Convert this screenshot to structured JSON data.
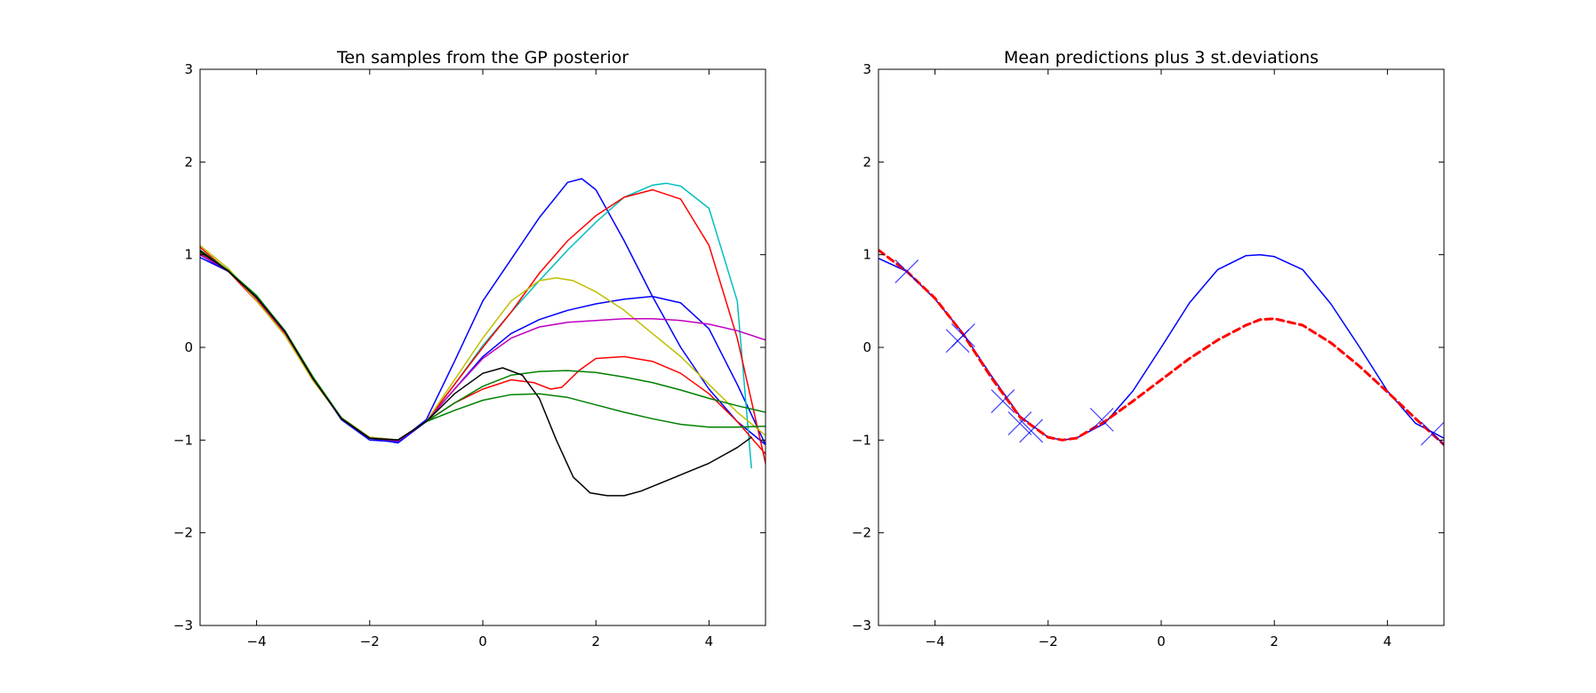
{
  "figure": {
    "background": "#ffffff"
  },
  "chart_data": [
    {
      "type": "line",
      "title": "Ten samples from the GP posterior",
      "xlabel": "",
      "ylabel": "",
      "xlim": [
        -5,
        5
      ],
      "ylim": [
        -3,
        3
      ],
      "xticks": [
        -4,
        -2,
        0,
        2,
        4
      ],
      "yticks": [
        -3,
        -2,
        -1,
        0,
        1,
        2,
        3
      ],
      "grid": false,
      "series": [
        {
          "color": "#0000ff",
          "x": [
            -5,
            -4.5,
            -4,
            -3.5,
            -3,
            -2.5,
            -2,
            -1.5,
            -1,
            -0.5,
            0,
            0.5,
            1,
            1.5,
            1.75,
            2,
            2.5,
            3,
            3.5,
            4,
            4.5,
            5
          ],
          "y": [
            0.97,
            0.82,
            0.55,
            0.18,
            -0.33,
            -0.78,
            -1.0,
            -1.02,
            -0.78,
            -0.15,
            0.5,
            0.95,
            1.4,
            1.78,
            1.82,
            1.7,
            1.15,
            0.55,
            0.0,
            -0.45,
            -0.8,
            -1.05
          ]
        },
        {
          "color": "#0000ff",
          "x": [
            -5,
            -4.5,
            -4,
            -3.5,
            -3,
            -2.5,
            -2,
            -1.5,
            -1,
            -0.5,
            0,
            0.5,
            1,
            1.5,
            2,
            2.5,
            3,
            3.5,
            4,
            4.5,
            5
          ],
          "y": [
            1.0,
            0.82,
            0.53,
            0.17,
            -0.34,
            -0.77,
            -0.98,
            -1.03,
            -0.8,
            -0.45,
            -0.1,
            0.15,
            0.3,
            0.4,
            0.47,
            0.52,
            0.55,
            0.48,
            0.2,
            -0.4,
            -1.05
          ]
        },
        {
          "color": "#00bfbf",
          "x": [
            -5,
            -4.5,
            -4,
            -3.5,
            -3,
            -2.5,
            -2,
            -1.5,
            -1,
            -0.5,
            0,
            0.5,
            1,
            1.5,
            2,
            2.5,
            3,
            3.25,
            3.5,
            4,
            4.5,
            4.75
          ],
          "y": [
            1.05,
            0.83,
            0.52,
            0.15,
            -0.35,
            -0.76,
            -0.97,
            -1.0,
            -0.8,
            -0.4,
            0.02,
            0.38,
            0.72,
            1.05,
            1.35,
            1.62,
            1.75,
            1.77,
            1.74,
            1.5,
            0.5,
            -1.3
          ]
        },
        {
          "color": "#ff0000",
          "x": [
            -5,
            -4.5,
            -4,
            -3.5,
            -3,
            -2.5,
            -2,
            -1.5,
            -1,
            -0.5,
            0,
            0.5,
            1,
            1.5,
            2,
            2.5,
            3,
            3.5,
            4,
            4.5,
            5
          ],
          "y": [
            1.08,
            0.82,
            0.5,
            0.14,
            -0.36,
            -0.76,
            -0.97,
            -1.0,
            -0.8,
            -0.4,
            0.0,
            0.38,
            0.8,
            1.15,
            1.42,
            1.62,
            1.7,
            1.6,
            1.1,
            0.1,
            -1.25
          ]
        },
        {
          "color": "#ff0000",
          "x": [
            -5,
            -4.5,
            -4,
            -3.5,
            -3,
            -2.5,
            -2,
            -1.5,
            -1,
            -0.5,
            0,
            0.5,
            0.9,
            1.2,
            1.4,
            1.7,
            2,
            2.5,
            3,
            3.5,
            4,
            4.5,
            5
          ],
          "y": [
            1.02,
            0.82,
            0.52,
            0.16,
            -0.33,
            -0.77,
            -0.98,
            -1.0,
            -0.8,
            -0.6,
            -0.45,
            -0.35,
            -0.38,
            -0.45,
            -0.43,
            -0.25,
            -0.12,
            -0.1,
            -0.15,
            -0.28,
            -0.5,
            -0.8,
            -1.15
          ]
        },
        {
          "color": "#bfbf00",
          "x": [
            -5,
            -4.5,
            -4,
            -3.5,
            -3,
            -2.5,
            -2,
            -1.5,
            -1,
            -0.5,
            0,
            0.5,
            1,
            1.3,
            1.6,
            2,
            2.5,
            3,
            3.5,
            4,
            4.5,
            5
          ],
          "y": [
            1.1,
            0.85,
            0.5,
            0.13,
            -0.36,
            -0.76,
            -0.97,
            -1.0,
            -0.8,
            -0.35,
            0.1,
            0.5,
            0.72,
            0.75,
            0.72,
            0.6,
            0.4,
            0.15,
            -0.1,
            -0.4,
            -0.7,
            -0.95
          ]
        },
        {
          "color": "#bf00bf",
          "x": [
            -5,
            -4.5,
            -4,
            -3.5,
            -3,
            -2.5,
            -2,
            -1.5,
            -1,
            -0.5,
            0,
            0.5,
            1,
            1.5,
            2,
            2.5,
            3,
            3.5,
            4,
            4.5,
            5
          ],
          "y": [
            1.0,
            0.83,
            0.53,
            0.16,
            -0.34,
            -0.77,
            -0.98,
            -1.01,
            -0.8,
            -0.45,
            -0.12,
            0.1,
            0.22,
            0.27,
            0.29,
            0.31,
            0.31,
            0.29,
            0.25,
            0.18,
            0.08
          ]
        },
        {
          "color": "#008000",
          "x": [
            -5,
            -4.5,
            -4,
            -3.5,
            -3,
            -2.5,
            -2,
            -1.5,
            -1,
            -0.5,
            0,
            0.5,
            1,
            1.5,
            2,
            2.5,
            3,
            3.5,
            4,
            4.5,
            5
          ],
          "y": [
            1.03,
            0.83,
            0.55,
            0.18,
            -0.33,
            -0.77,
            -0.98,
            -1.0,
            -0.8,
            -0.6,
            -0.42,
            -0.3,
            -0.26,
            -0.25,
            -0.27,
            -0.32,
            -0.38,
            -0.46,
            -0.55,
            -0.63,
            -0.7
          ]
        },
        {
          "color": "#008000",
          "x": [
            -5,
            -4.5,
            -4,
            -3.5,
            -3,
            -2.5,
            -2,
            -1.5,
            -1,
            -0.5,
            0,
            0.5,
            1,
            1.5,
            2,
            2.5,
            3,
            3.5,
            4,
            4.5,
            5
          ],
          "y": [
            1.05,
            0.83,
            0.56,
            0.18,
            -0.32,
            -0.76,
            -0.98,
            -1.0,
            -0.8,
            -0.68,
            -0.57,
            -0.51,
            -0.5,
            -0.54,
            -0.62,
            -0.7,
            -0.77,
            -0.83,
            -0.86,
            -0.86,
            -0.85
          ]
        },
        {
          "color": "#000000",
          "x": [
            -5,
            -4.5,
            -4,
            -3.5,
            -3,
            -2.5,
            -2,
            -1.5,
            -1,
            -0.5,
            0,
            0.35,
            0.7,
            1.0,
            1.3,
            1.6,
            1.9,
            2.2,
            2.5,
            2.8,
            3.2,
            3.6,
            4,
            4.5,
            4.75
          ],
          "y": [
            1.04,
            0.82,
            0.54,
            0.17,
            -0.34,
            -0.77,
            -0.98,
            -1.0,
            -0.8,
            -0.5,
            -0.28,
            -0.22,
            -0.3,
            -0.55,
            -1.0,
            -1.4,
            -1.57,
            -1.6,
            -1.6,
            -1.55,
            -1.45,
            -1.35,
            -1.25,
            -1.08,
            -0.97
          ]
        }
      ]
    },
    {
      "type": "line",
      "title": "Mean predictions plus 3 st.deviations",
      "xlabel": "",
      "ylabel": "",
      "xlim": [
        -5,
        5
      ],
      "ylim": [
        -3,
        3
      ],
      "xticks": [
        -4,
        -2,
        0,
        2,
        4
      ],
      "yticks": [
        -3,
        -2,
        -1,
        0,
        1,
        2,
        3
      ],
      "grid": false,
      "true_function": {
        "color": "#0000ff",
        "style": "solid",
        "x": [
          -5,
          -4.5,
          -4,
          -3.5,
          -3,
          -2.5,
          -2,
          -1.75,
          -1.5,
          -1,
          -0.5,
          0,
          0.5,
          1,
          1.5,
          1.75,
          2,
          2.5,
          3,
          3.5,
          4,
          4.5,
          5
        ],
        "y": [
          0.96,
          0.82,
          0.52,
          0.15,
          -0.31,
          -0.74,
          -0.97,
          -1.0,
          -0.98,
          -0.82,
          -0.47,
          0.0,
          0.48,
          0.84,
          0.99,
          1.0,
          0.98,
          0.84,
          0.47,
          0.01,
          -0.47,
          -0.82,
          -0.98
        ]
      },
      "mean_prediction": {
        "color": "#ff0000",
        "style": "dashed",
        "x": [
          -5,
          -4.5,
          -4,
          -3.5,
          -3,
          -2.5,
          -2,
          -1.75,
          -1.5,
          -1,
          -0.5,
          0,
          0.5,
          1,
          1.5,
          1.75,
          2,
          2.5,
          3,
          3.5,
          4,
          4.5,
          5
        ],
        "y": [
          1.05,
          0.82,
          0.53,
          0.14,
          -0.33,
          -0.75,
          -0.97,
          -1.0,
          -0.98,
          -0.8,
          -0.58,
          -0.35,
          -0.12,
          0.08,
          0.24,
          0.3,
          0.31,
          0.24,
          0.05,
          -0.2,
          -0.48,
          -0.77,
          -1.05
        ]
      },
      "observations": {
        "color": "#0000ff",
        "marker": "x",
        "x": [
          -4.5,
          -3.6,
          -3.5,
          -2.8,
          -2.5,
          -2.3,
          -1.05,
          4.8
        ],
        "y": [
          0.82,
          0.07,
          0.13,
          -0.58,
          -0.82,
          -0.9,
          -0.78,
          -0.93
        ]
      }
    }
  ]
}
